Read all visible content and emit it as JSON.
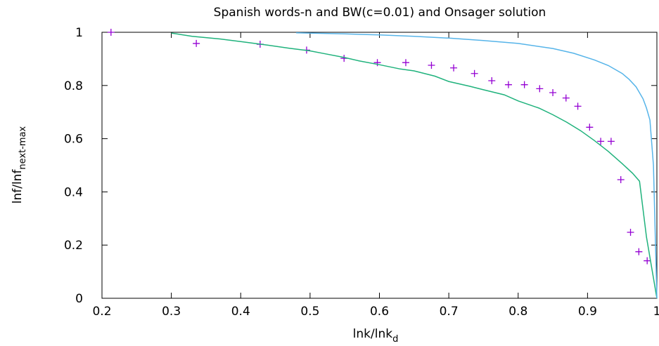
{
  "chart_data": {
    "type": "line",
    "title": "Spanish words-n and BW(c=0.01) and Onsager solution",
    "xlabel": {
      "base": "lnk/lnk",
      "sub": "d"
    },
    "ylabel": {
      "base": "lnf/lnf",
      "sub": "next-max"
    },
    "xlim": [
      0.2,
      1.0
    ],
    "ylim": [
      0,
      1
    ],
    "x_ticks": [
      "0.2",
      "0.3",
      "0.4",
      "0.5",
      "0.6",
      "0.7",
      "0.8",
      "0.9",
      "1"
    ],
    "y_ticks": [
      "0",
      "0.2",
      "0.4",
      "0.6",
      "0.8",
      "1"
    ],
    "grid": false,
    "legend": "none",
    "series": [
      {
        "kind": "scatter",
        "marker": "plus",
        "color": "#9400d3",
        "x": [
          0.213,
          0.336,
          0.428,
          0.495,
          0.549,
          0.597,
          0.638,
          0.675,
          0.707,
          0.737,
          0.762,
          0.786,
          0.809,
          0.831,
          0.85,
          0.869,
          0.886,
          0.903,
          0.919,
          0.934,
          0.948,
          0.962,
          0.974,
          0.986
        ],
        "y": [
          1.0,
          0.958,
          0.955,
          0.933,
          0.902,
          0.886,
          0.886,
          0.876,
          0.866,
          0.845,
          0.818,
          0.803,
          0.803,
          0.788,
          0.773,
          0.753,
          0.722,
          0.643,
          0.59,
          0.59,
          0.446,
          0.248,
          0.175,
          0.141
        ]
      },
      {
        "kind": "line",
        "color": "#1fb27c",
        "x": [
          0.3,
          0.33,
          0.37,
          0.4,
          0.43,
          0.47,
          0.5,
          0.52,
          0.55,
          0.57,
          0.6,
          0.63,
          0.65,
          0.68,
          0.7,
          0.73,
          0.75,
          0.78,
          0.8,
          0.83,
          0.85,
          0.87,
          0.89,
          0.91,
          0.93,
          0.95,
          0.965,
          0.975,
          0.985,
          1.0
        ],
        "y": [
          0.997,
          0.985,
          0.975,
          0.965,
          0.955,
          0.94,
          0.93,
          0.92,
          0.905,
          0.893,
          0.878,
          0.862,
          0.855,
          0.835,
          0.815,
          0.797,
          0.784,
          0.765,
          0.742,
          0.715,
          0.69,
          0.662,
          0.63,
          0.593,
          0.552,
          0.506,
          0.47,
          0.44,
          0.23,
          0.0
        ]
      },
      {
        "kind": "line",
        "color": "#56b4e9",
        "x": [
          0.48,
          0.55,
          0.6,
          0.65,
          0.7,
          0.75,
          0.8,
          0.85,
          0.88,
          0.91,
          0.93,
          0.95,
          0.96,
          0.97,
          0.98,
          0.985,
          0.99,
          0.995,
          1.0
        ],
        "y": [
          0.998,
          0.994,
          0.99,
          0.985,
          0.978,
          0.969,
          0.958,
          0.939,
          0.921,
          0.896,
          0.875,
          0.845,
          0.823,
          0.795,
          0.75,
          0.715,
          0.67,
          0.5,
          0.0
        ]
      }
    ]
  }
}
